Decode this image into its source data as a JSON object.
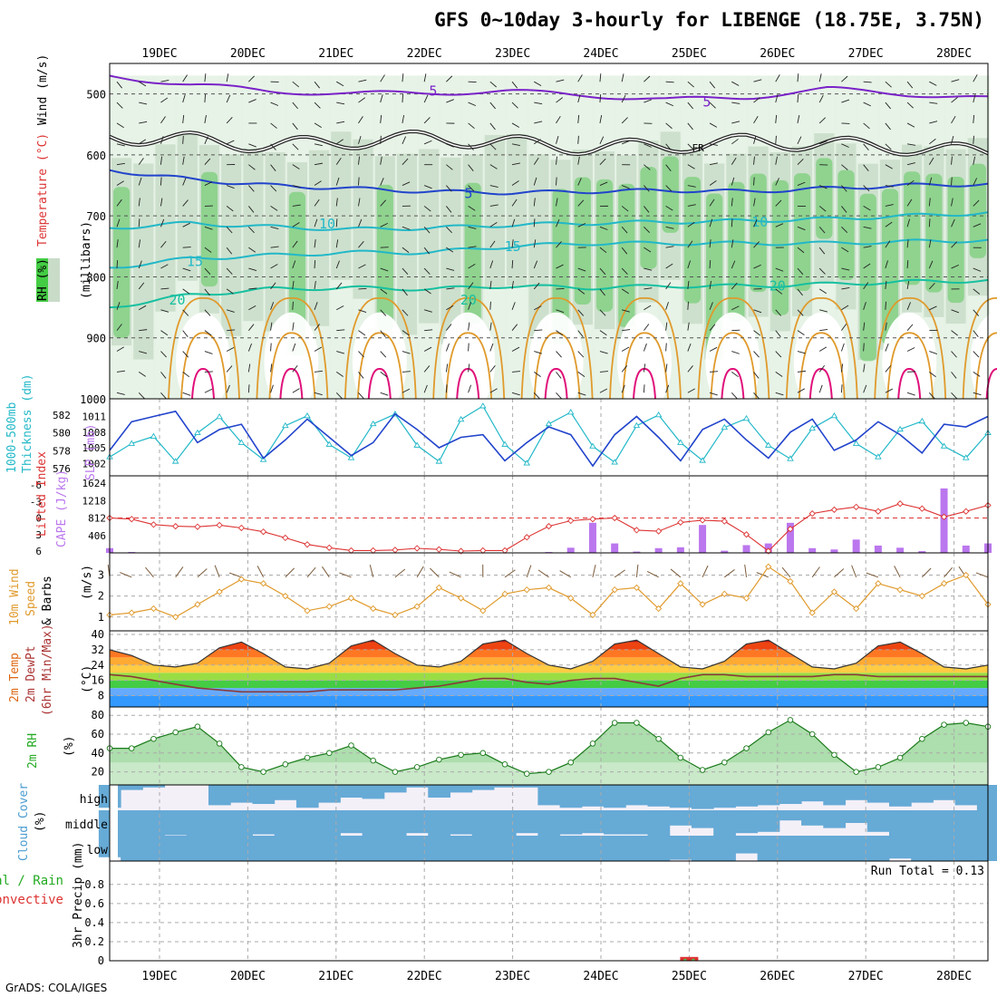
{
  "title": "GFS 0~10day 3-hourly for LIBENGE (18.75E, 3.75N)",
  "footer": "GrADS: COLA/IGES",
  "colors": {
    "axis": "#000000",
    "grid": "#aaaaaa",
    "purple": "#7a22c8",
    "blue": "#2244cc",
    "cyan": "#22b8c8",
    "teal": "#16c0a0",
    "orange": "#e09a2c",
    "magenta": "#e0107a",
    "green": "#55cc55",
    "lightgreen": "#d8f0d8",
    "red": "#dd3333",
    "cape": "#bb77ee",
    "cloud": "#66aad6",
    "cloudbg": "#f4f0f8"
  },
  "chart_data": [
    {
      "type": "area",
      "panel": "upper-air",
      "xlabel_dates": [
        "19DEC",
        "20DEC",
        "21DEC",
        "22DEC",
        "23DEC",
        "24DEC",
        "25DEC",
        "26DEC",
        "27DEC",
        "28DEC"
      ],
      "yaxis_title": "(millibars)",
      "yticks": [
        500,
        600,
        700,
        800,
        900,
        1000
      ],
      "ylim": [
        450,
        1000
      ],
      "legend": [
        "RH (%)",
        "Temperature (°C)",
        "Wind (m/s)"
      ],
      "contour_labels": [
        {
          "text": "5",
          "level": 495,
          "day": 3.1
        },
        {
          "text": "5",
          "level": 513,
          "day": 6.2
        },
        {
          "text": "FR",
          "level": 587,
          "day": 6.1
        },
        {
          "text": "5",
          "level": 663,
          "day": 3.5
        },
        {
          "text": "10",
          "level": 713,
          "day": 1.9
        },
        {
          "text": "10",
          "level": 710,
          "day": 6.8
        },
        {
          "text": "15",
          "level": 750,
          "day": 4.0
        },
        {
          "text": "15",
          "level": 775,
          "day": 0.4
        },
        {
          "text": "20",
          "level": 838,
          "day": 0.2
        },
        {
          "text": "20",
          "level": 838,
          "day": 3.5
        },
        {
          "text": "20",
          "level": 815,
          "day": 7.0
        }
      ],
      "isotherms": [
        {
          "name": "-5C",
          "label": "5",
          "color": "purple",
          "levels": [
            470,
            485,
            495,
            500,
            498,
            496,
            502,
            510,
            505,
            492,
            500,
            508
          ]
        },
        {
          "name": "0C",
          "label": "FR",
          "color": "black",
          "levels": [
            570,
            575,
            585,
            578,
            572,
            580,
            588,
            585,
            578,
            582,
            588,
            596
          ]
        },
        {
          "name": "5C",
          "label": "5",
          "color": "blue",
          "levels": [
            625,
            640,
            650,
            655,
            660,
            662,
            660,
            658,
            660,
            655,
            650,
            648
          ]
        },
        {
          "name": "10C",
          "label": "10",
          "color": "cyan",
          "levels": [
            720,
            712,
            718,
            722,
            720,
            715,
            712,
            710,
            708,
            705,
            700,
            695
          ]
        },
        {
          "name": "15C",
          "label": "15",
          "color": "cyan",
          "levels": [
            785,
            770,
            765,
            760,
            760,
            750,
            745,
            745,
            745,
            745,
            742,
            740
          ]
        },
        {
          "name": "20C",
          "label": "20",
          "color": "teal",
          "levels": [
            850,
            830,
            820,
            818,
            820,
            815,
            818,
            815,
            815,
            812,
            808,
            806
          ]
        }
      ]
    },
    {
      "type": "line",
      "panel": "thickness-slp",
      "ylabel_left": "1000-500mb Thickness (dm)",
      "ylabel_right": "SLP (mb)",
      "left_ticks": [
        576,
        578,
        580,
        582
      ],
      "right_ticks": [
        1002,
        1005,
        1008,
        1011
      ],
      "series": [
        {
          "name": "Thickness",
          "color": "cyan",
          "values": [
            577.3,
            578.8,
            579.6,
            576.8,
            580.0,
            581.8,
            578.9,
            577.0,
            580.8,
            581.9,
            578.7,
            577.2,
            581.0,
            582.1,
            578.6,
            576.8,
            581.5,
            583.0,
            578.7,
            576.6,
            581.0,
            582.3,
            578.5,
            576.7,
            580.8,
            582.0,
            578.9,
            576.9,
            580.6,
            581.6,
            578.6,
            577.1,
            580.5,
            581.9,
            578.8,
            577.3,
            580.4,
            581.3,
            578.5,
            577.2,
            580.0
          ]
        },
        {
          "name": "SLP",
          "color": "blue",
          "values": [
            1004.5,
            1010.0,
            1011.0,
            1012.0,
            1006.0,
            1008.5,
            1009.5,
            1003.0,
            1006.5,
            1010.5,
            1007.0,
            1003.5,
            1006.0,
            1011.5,
            1008.5,
            1005.0,
            1007.0,
            1007.5,
            1002.5,
            1006.0,
            1009.0,
            1007.5,
            1001.5,
            1007.5,
            1011.0,
            1007.0,
            1002.5,
            1008.5,
            1010.5,
            1006.5,
            1003.0,
            1008.0,
            1010.5,
            1004.5,
            1006.5,
            1010.0,
            1007.5,
            1004.0,
            1009.5,
            1009.0,
            1011.0
          ]
        }
      ]
    },
    {
      "type": "bar",
      "panel": "lifted-index-cape",
      "ylabel_left": "Lifted Index",
      "ylabel_right": "CAPE (J/kg)",
      "li_ticks": [
        -6,
        -3,
        0,
        3,
        6
      ],
      "cape_ticks": [
        406,
        812,
        1218,
        1624
      ],
      "series": [
        {
          "name": "Lifted Index",
          "color": "red",
          "values": [
            0,
            0.2,
            1.2,
            1.5,
            1.6,
            1.3,
            1.8,
            2.5,
            3.6,
            4.8,
            5.4,
            5.9,
            5.9,
            5.8,
            5.5,
            5.7,
            6.0,
            5.9,
            5.9,
            3.5,
            1.5,
            0.5,
            0.2,
            0.0,
            2.2,
            2.4,
            0.8,
            0.4,
            0.6,
            3.0,
            6.0,
            2.0,
            -0.8,
            -1.5,
            -2.0,
            -1.2,
            -2.6,
            -1.7,
            -0.2,
            -1.2,
            -2.3
          ]
        },
        {
          "name": "CAPE",
          "color": "cape",
          "values": [
            110,
            20,
            0,
            0,
            0,
            0,
            0,
            0,
            0,
            0,
            0,
            0,
            0,
            0,
            0,
            0,
            0,
            0,
            0,
            0,
            20,
            120,
            700,
            220,
            30,
            110,
            130,
            650,
            50,
            180,
            220,
            700,
            110,
            80,
            310,
            170,
            120,
            40,
            1500,
            170,
            220
          ]
        }
      ]
    },
    {
      "type": "line",
      "panel": "10m-wind",
      "ylabel": "10m Wind Speed & Barbs (m/s)",
      "yticks": [
        1,
        2,
        3
      ],
      "series": [
        {
          "name": "Speed",
          "color": "orange",
          "values": [
            1.1,
            1.2,
            1.4,
            1.0,
            1.6,
            2.2,
            2.8,
            2.6,
            2.0,
            1.3,
            1.5,
            1.9,
            1.4,
            1.1,
            1.5,
            2.4,
            1.9,
            1.3,
            2.1,
            2.3,
            2.4,
            1.9,
            1.1,
            2.3,
            2.4,
            1.4,
            2.6,
            1.6,
            2.1,
            1.9,
            3.4,
            2.7,
            1.2,
            2.2,
            1.4,
            2.6,
            2.3,
            2.0,
            2.6,
            3.0,
            1.6
          ]
        }
      ]
    },
    {
      "type": "area",
      "panel": "2m-temp",
      "ylabel": "2m Temp 2m DewPt (6hr Min/Max) (°C)",
      "yticks": [
        8,
        16,
        24,
        32,
        40
      ],
      "series": [
        {
          "name": "2m Temp",
          "color": "orange",
          "values": [
            32,
            29,
            24,
            23,
            25,
            33,
            36,
            30,
            23,
            22,
            25,
            34,
            37,
            30,
            24,
            23,
            26,
            35,
            37,
            30,
            24,
            22,
            26,
            35,
            37,
            30,
            23,
            22,
            26,
            35,
            37,
            30,
            23,
            22,
            25,
            34,
            36,
            30,
            23,
            22,
            24
          ]
        },
        {
          "name": "2m DewPt",
          "color": "brown",
          "values": [
            19,
            18,
            16,
            14,
            12,
            11,
            10,
            10,
            10,
            10,
            11,
            11,
            11,
            11,
            12,
            13,
            15,
            17,
            17,
            15,
            14,
            16,
            17,
            17,
            15,
            13,
            17,
            19,
            19,
            18,
            18,
            18,
            18,
            19,
            19,
            18,
            18,
            18,
            18,
            18,
            18
          ]
        }
      ]
    },
    {
      "type": "area",
      "panel": "2m-rh",
      "ylabel": "2m RH (%)",
      "yticks": [
        20,
        40,
        60,
        80
      ],
      "series": [
        {
          "name": "2m RH",
          "color": "green",
          "values": [
            45,
            45,
            55,
            62,
            68,
            50,
            25,
            20,
            28,
            35,
            40,
            48,
            32,
            20,
            25,
            33,
            38,
            40,
            28,
            18,
            20,
            30,
            50,
            72,
            72,
            55,
            35,
            22,
            30,
            45,
            62,
            75,
            60,
            38,
            20,
            25,
            35,
            55,
            70,
            72,
            68
          ]
        }
      ]
    },
    {
      "type": "heatmap",
      "panel": "cloud-cover",
      "ylabel": "Cloud Cover (%)",
      "rows": [
        "high",
        "middle",
        "low"
      ],
      "series": [
        {
          "name": "high",
          "values": [
            90,
            20,
            10,
            0,
            0,
            80,
            70,
            75,
            60,
            90,
            70,
            50,
            55,
            30,
            10,
            50,
            30,
            20,
            10,
            10,
            80,
            90,
            85,
            90,
            80,
            85,
            90,
            95,
            90,
            85,
            80,
            75,
            65,
            80,
            60,
            70,
            85,
            70,
            60,
            80,
            100
          ]
        },
        {
          "name": "middle",
          "values": [
            100,
            100,
            100,
            98,
            100,
            100,
            100,
            95,
            100,
            100,
            100,
            90,
            100,
            100,
            90,
            100,
            95,
            100,
            100,
            90,
            100,
            95,
            90,
            95,
            95,
            100,
            60,
            70,
            100,
            90,
            85,
            40,
            60,
            70,
            50,
            85,
            100,
            100,
            100,
            100,
            100
          ]
        },
        {
          "name": "low",
          "values": [
            85,
            100,
            100,
            100,
            100,
            100,
            100,
            100,
            100,
            100,
            100,
            100,
            100,
            100,
            100,
            100,
            100,
            100,
            100,
            100,
            100,
            100,
            100,
            100,
            100,
            100,
            95,
            100,
            100,
            70,
            100,
            100,
            100,
            100,
            100,
            100,
            90,
            100,
            100,
            100,
            100
          ]
        }
      ]
    },
    {
      "type": "bar",
      "panel": "precip",
      "ylabel": "3hr Precip (mm)",
      "legend": [
        "Total / Rain",
        "Convective"
      ],
      "yticks": [
        0,
        0.2,
        0.4,
        0.6,
        0.8
      ],
      "annotation": "Run Total = 0.13",
      "series": [
        {
          "name": "Total / Rain",
          "color": "green",
          "values": [
            0,
            0,
            0,
            0,
            0,
            0,
            0,
            0,
            0,
            0,
            0,
            0,
            0,
            0,
            0,
            0,
            0,
            0,
            0,
            0,
            0,
            0,
            0,
            0,
            0,
            0,
            0,
            0,
            0,
            0,
            0,
            0,
            0,
            0,
            0,
            0,
            0,
            0,
            0,
            0,
            0
          ]
        },
        {
          "name": "Convective",
          "color": "red",
          "values": [
            0,
            0,
            0,
            0,
            0,
            0,
            0,
            0,
            0,
            0,
            0,
            0,
            0,
            0,
            0,
            0,
            0,
            0,
            0,
            0,
            0,
            0,
            0,
            0,
            0,
            0,
            0,
            0,
            0,
            0,
            0,
            0,
            0,
            0,
            0,
            0,
            0,
            0,
            0,
            0,
            0
          ]
        }
      ],
      "events": [
        {
          "day": 6.0,
          "value": 0.04,
          "rain": 0.02
        }
      ]
    }
  ],
  "labels": {
    "p1_rh": "RH (%)",
    "p1_temp": "Temperature (°C)",
    "p1_wind": "Wind (m/s)",
    "p1_mb": "(millibars)",
    "p2_thk1": "1000-500mb",
    "p2_thk2": "Thickness (dm)",
    "p2_slp": "SLP (mb)",
    "p3_li": "Lifted Index",
    "p3_cape": "CAPE (J/kg)",
    "p4_a": "10m Wind",
    "p4_b": "Speed",
    "p4_c": "& Barbs",
    "p4_unit": "(m/s)",
    "p5_a": "2m Temp",
    "p5_b": "2m DewPt",
    "p5_c": "(6hr Min/Max)",
    "p5_unit": "(°C)",
    "p6_a": "2m RH",
    "p6_unit": "(%)",
    "p7_a": "Cloud Cover",
    "p7_unit": "(%)",
    "p8_a": "Total / Rain",
    "p8_b": "Convective",
    "p8_c": "3hr Precip (mm)",
    "run_total": "Run Total = 0.13",
    "cloud_high": "high",
    "cloud_middle": "middle",
    "cloud_low": "low"
  }
}
